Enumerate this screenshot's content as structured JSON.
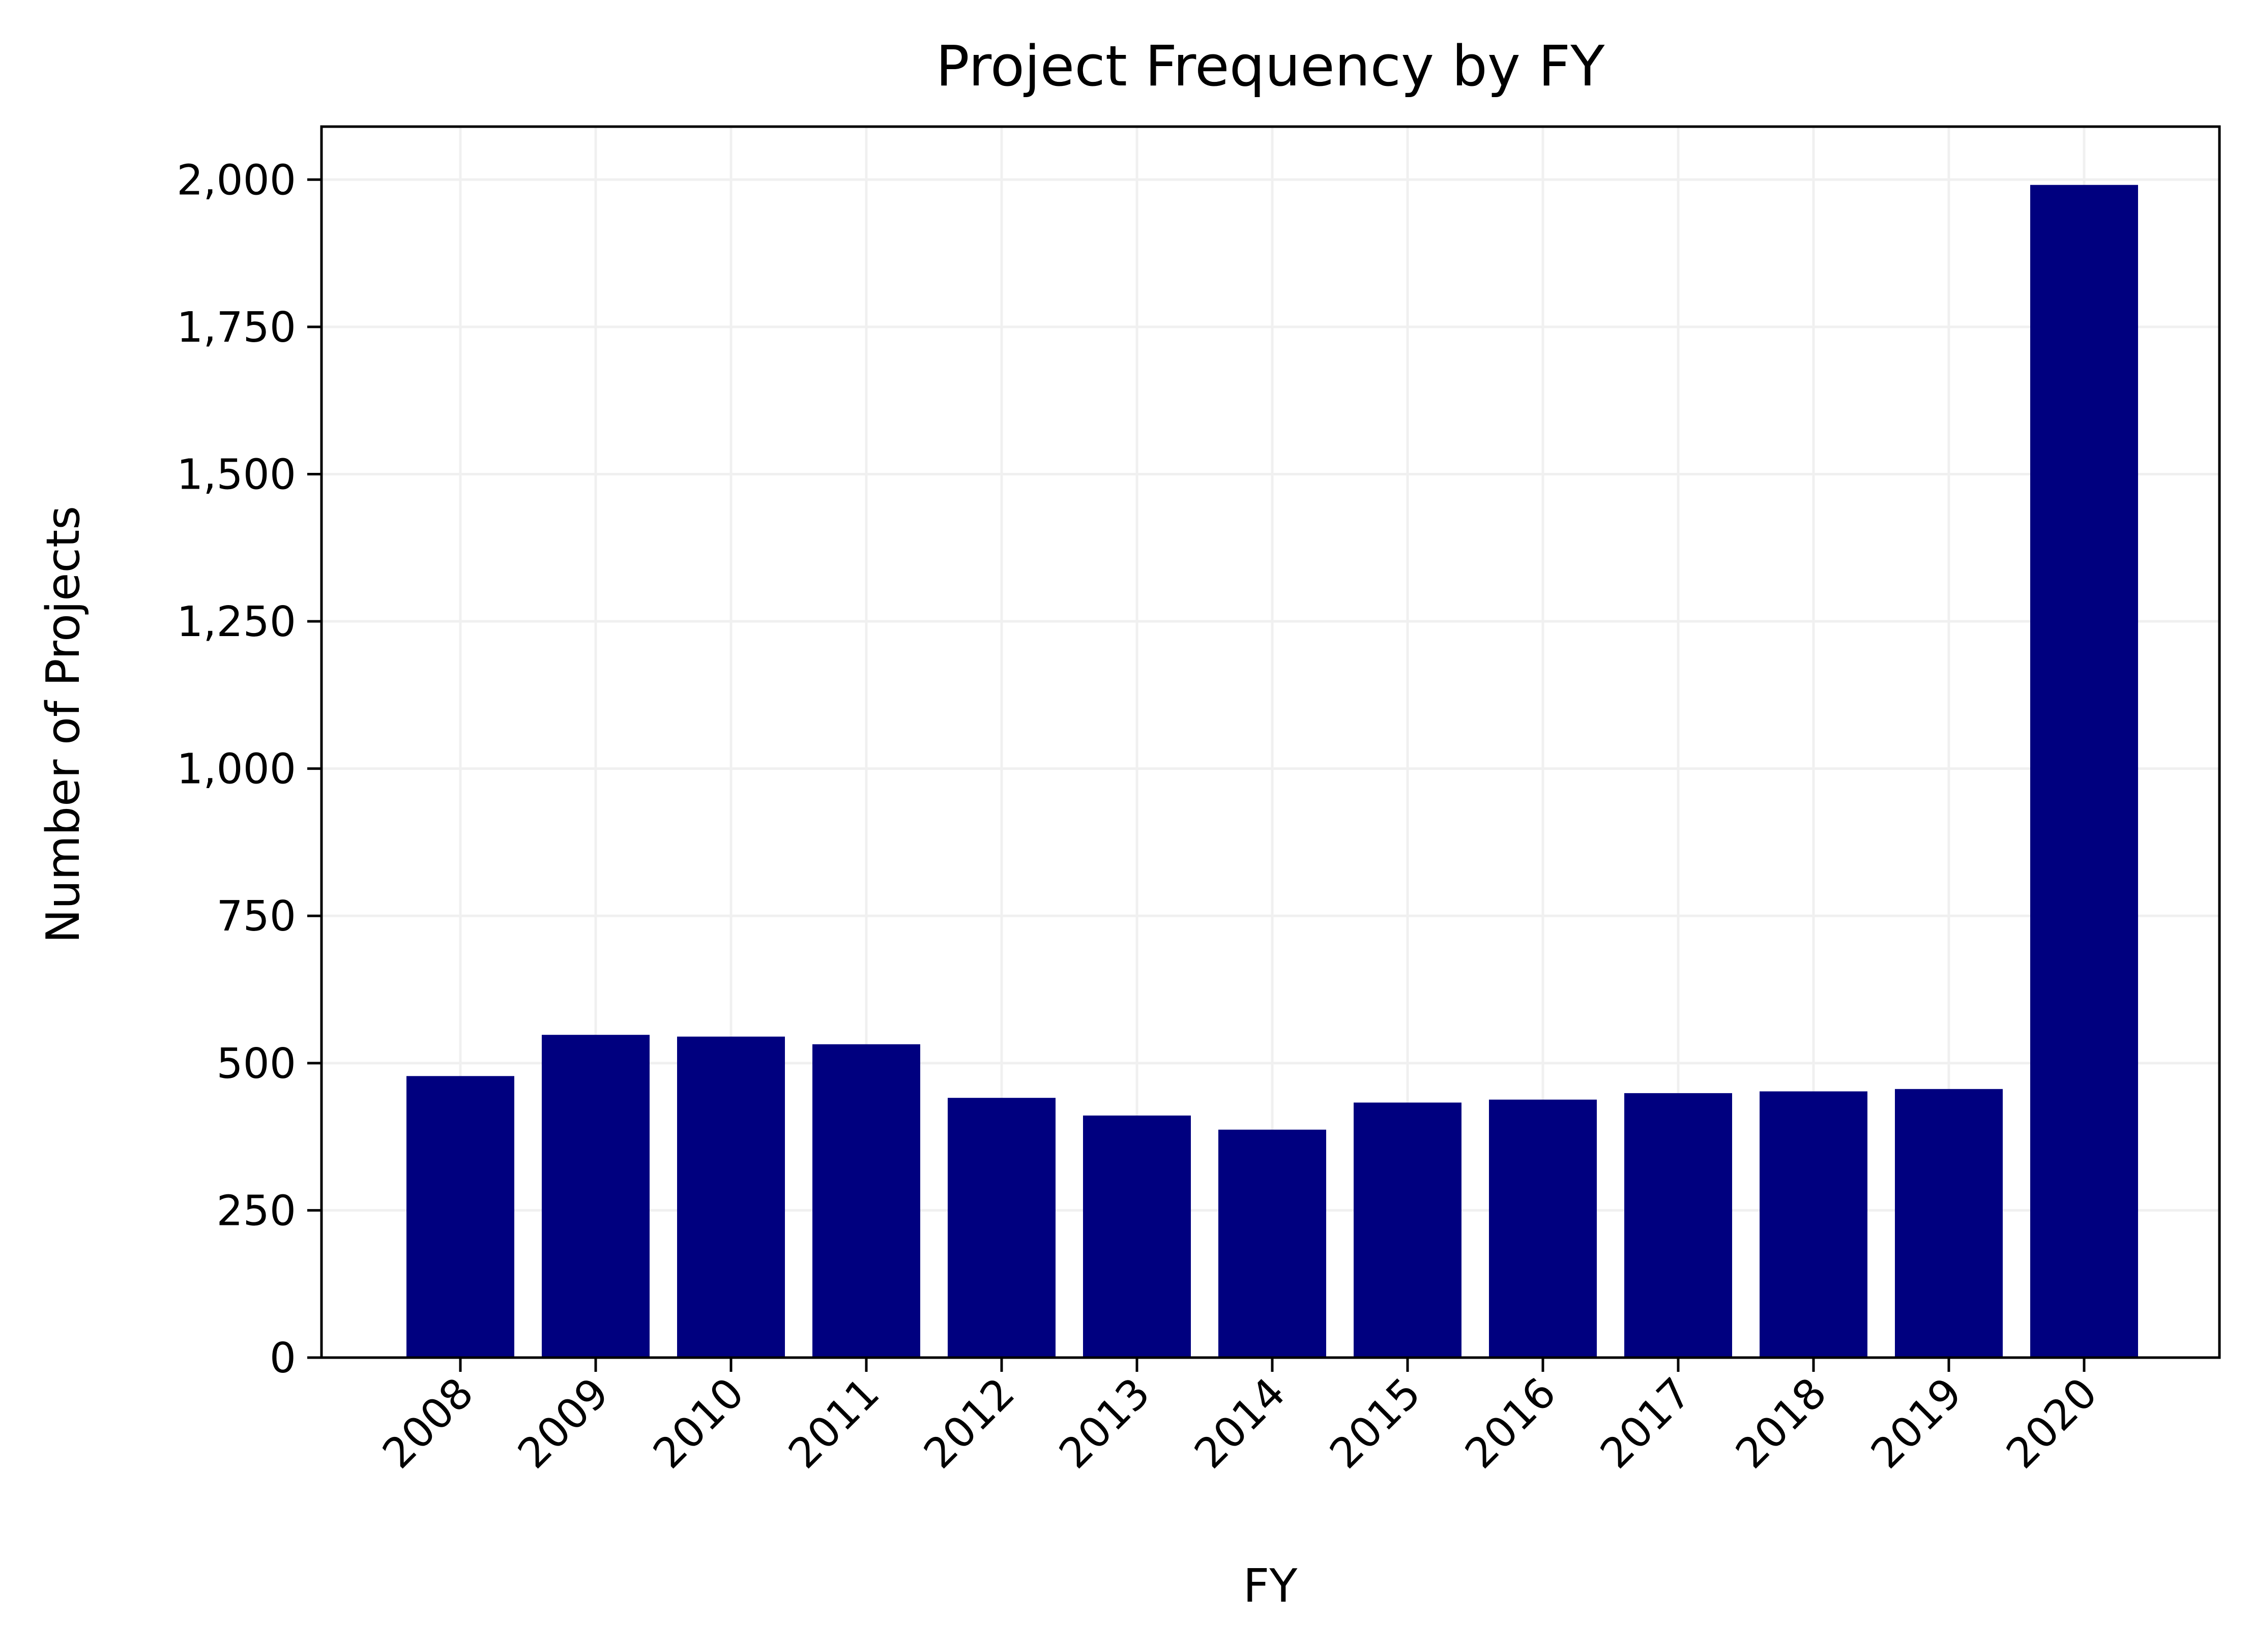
{
  "chart_data": {
    "type": "bar",
    "title": "Project Frequency by FY",
    "xlabel": "FY",
    "ylabel": "Number of Projects",
    "categories": [
      "2008",
      "2009",
      "2010",
      "2011",
      "2012",
      "2013",
      "2014",
      "2015",
      "2016",
      "2017",
      "2018",
      "2019",
      "2020"
    ],
    "values": [
      478,
      548,
      545,
      532,
      441,
      411,
      387,
      433,
      438,
      449,
      452,
      456,
      1991
    ],
    "ylim": [
      0,
      2090
    ],
    "yticks": [
      0,
      250,
      500,
      750,
      1000,
      1250,
      1500,
      1750,
      2000
    ],
    "ytick_labels": [
      "0",
      "250",
      "500",
      "750",
      "1,000",
      "1,250",
      "1,500",
      "1,750",
      "2,000"
    ],
    "xtick_rotation": 45,
    "grid": true,
    "colors": {
      "bar": "#00007f",
      "grid": "#f0f0f0",
      "axis": "#000000"
    }
  }
}
